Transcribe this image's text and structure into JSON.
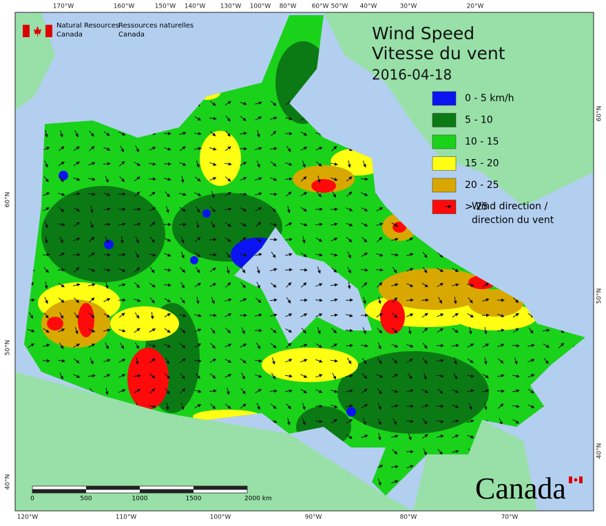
{
  "header": {
    "department_en": [
      "Natural Resources",
      "Canada"
    ],
    "department_fr": [
      "Ressources naturelles",
      "Canada"
    ]
  },
  "title": [
    "Wind Speed",
    "Vitesse du vent"
  ],
  "date": "2016-04-18",
  "legend": {
    "items": [
      {
        "label": "0 - 5 km/h",
        "color": "#0a14f0"
      },
      {
        "label": "5 - 10",
        "color": "#0b7a14"
      },
      {
        "label": "10 - 15",
        "color": "#1ad21a"
      },
      {
        "label": "15 - 20",
        "color": "#ffff14"
      },
      {
        "label": "20 - 25",
        "color": "#d9a800"
      },
      {
        "label": "> 25",
        "color": "#ff0a0a"
      }
    ],
    "arrow_label": [
      "Wind direction /",
      "direction du vent"
    ]
  },
  "graticule": {
    "top": [
      "170°W",
      "160°W",
      "150°W",
      "140°W",
      "130°W",
      "100°W",
      "80°W",
      "60°W",
      "50°W",
      "40°W",
      "30°W",
      "20°W"
    ],
    "bottom": [
      "120°W",
      "110°W",
      "100°W",
      "90°W",
      "80°W",
      "70°W"
    ],
    "left": [
      "60°N",
      "50°N",
      "40°N"
    ],
    "right": [
      "60°N",
      "50°N",
      "40°N"
    ]
  },
  "scale_bar": [
    "0",
    "500",
    "1000",
    "1500",
    "2000 km"
  ],
  "wordmark": "Canada"
}
